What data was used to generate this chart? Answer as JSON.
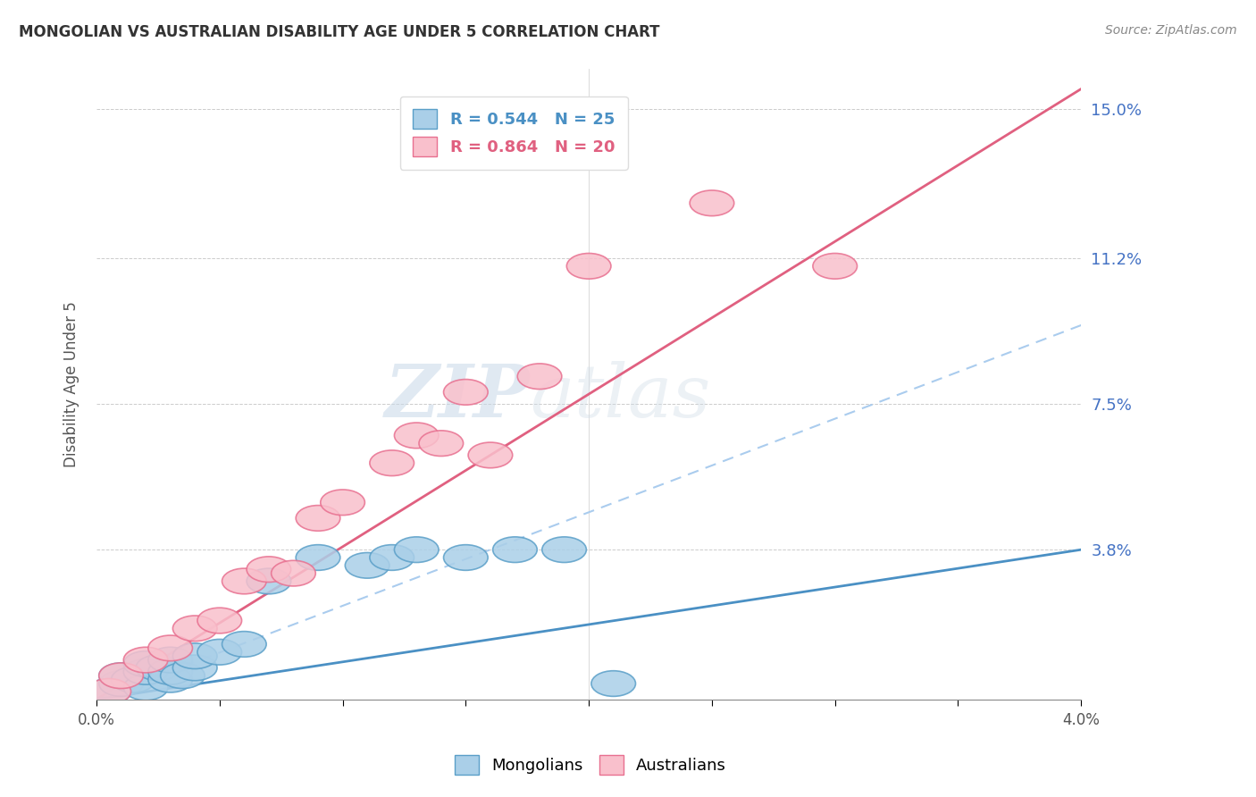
{
  "title": "MONGOLIAN VS AUSTRALIAN DISABILITY AGE UNDER 5 CORRELATION CHART",
  "source": "Source: ZipAtlas.com",
  "ylabel_label": "Disability Age Under 5",
  "mongolian_color": "#aacfe8",
  "australian_color": "#f9c0cc",
  "mongolian_edge_color": "#5a9fc8",
  "australian_edge_color": "#e87090",
  "mongolian_line_color": "#4a90c4",
  "australian_line_color": "#e06080",
  "dashed_line_color": "#aaccee",
  "watermark_zip": "ZIP",
  "watermark_atlas": "atlas",
  "xlim": [
    0.0,
    0.04
  ],
  "ylim": [
    0.0,
    0.16
  ],
  "yticks": [
    0.038,
    0.075,
    0.112,
    0.15
  ],
  "ytick_labels": [
    "3.8%",
    "7.5%",
    "11.2%",
    "15.0%"
  ],
  "xticks": [
    0.0,
    0.005,
    0.01,
    0.015,
    0.02,
    0.025,
    0.03,
    0.035,
    0.04
  ],
  "xtick_labels": [
    "0.0%",
    "",
    "",
    "",
    "",
    "",
    "",
    "",
    "4.0%"
  ],
  "mongolian_x": [
    0.0005,
    0.001,
    0.001,
    0.0015,
    0.002,
    0.002,
    0.002,
    0.0025,
    0.003,
    0.003,
    0.003,
    0.0035,
    0.004,
    0.004,
    0.005,
    0.006,
    0.007,
    0.009,
    0.011,
    0.012,
    0.013,
    0.015,
    0.017,
    0.019,
    0.021
  ],
  "mongolian_y": [
    0.002,
    0.004,
    0.006,
    0.005,
    0.003,
    0.007,
    0.009,
    0.008,
    0.005,
    0.007,
    0.01,
    0.006,
    0.008,
    0.011,
    0.012,
    0.014,
    0.03,
    0.036,
    0.034,
    0.036,
    0.038,
    0.036,
    0.038,
    0.038,
    0.004
  ],
  "australian_x": [
    0.0005,
    0.001,
    0.002,
    0.003,
    0.004,
    0.005,
    0.006,
    0.007,
    0.008,
    0.009,
    0.01,
    0.012,
    0.013,
    0.014,
    0.015,
    0.016,
    0.018,
    0.02,
    0.025,
    0.03
  ],
  "australian_y": [
    0.002,
    0.006,
    0.01,
    0.013,
    0.018,
    0.02,
    0.03,
    0.033,
    0.032,
    0.046,
    0.05,
    0.06,
    0.067,
    0.065,
    0.078,
    0.062,
    0.082,
    0.11,
    0.126,
    0.11
  ],
  "mongolian_line_x": [
    0.0,
    0.04
  ],
  "mongolian_line_y": [
    0.0,
    0.038
  ],
  "australian_line_x": [
    0.0,
    0.04
  ],
  "australian_line_y": [
    0.0,
    0.155
  ],
  "dashed_line_x": [
    0.0,
    0.04
  ],
  "dashed_line_y": [
    0.0,
    0.095
  ]
}
